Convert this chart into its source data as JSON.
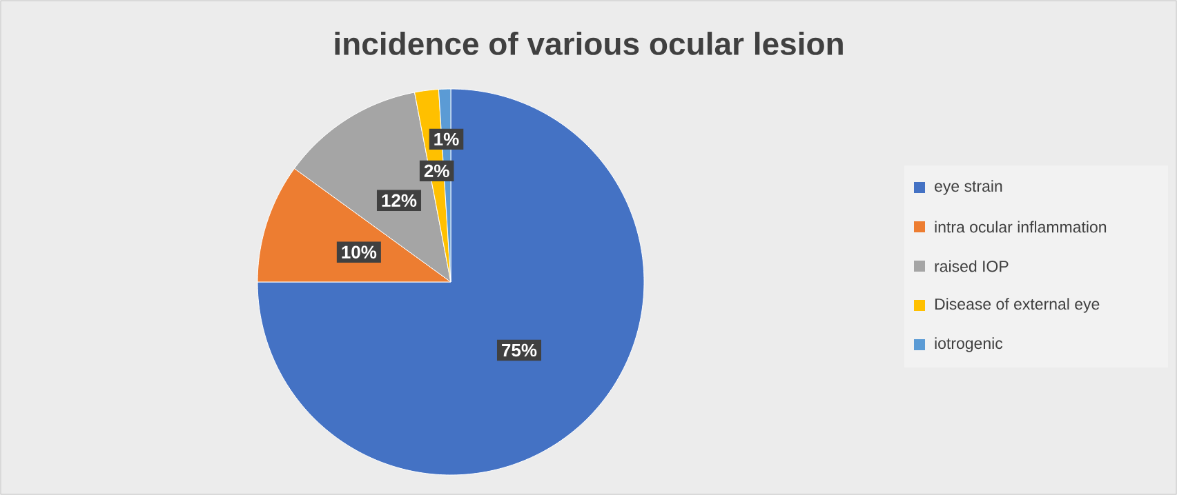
{
  "chart_data": {
    "type": "pie",
    "title": "incidence of various ocular lesion",
    "categories": [
      "eye strain",
      "intra ocular inflammation",
      "raised IOP",
      "Disease of external eye",
      "iotrogenic"
    ],
    "values": [
      75,
      10,
      12,
      2,
      1
    ],
    "colors": [
      "#4472c4",
      "#ed7d31",
      "#a5a5a5",
      "#ffc000",
      "#5b9bd5"
    ],
    "value_labels": [
      "75%",
      "10%",
      "12%",
      "2%",
      "1%"
    ],
    "legend": "right"
  }
}
